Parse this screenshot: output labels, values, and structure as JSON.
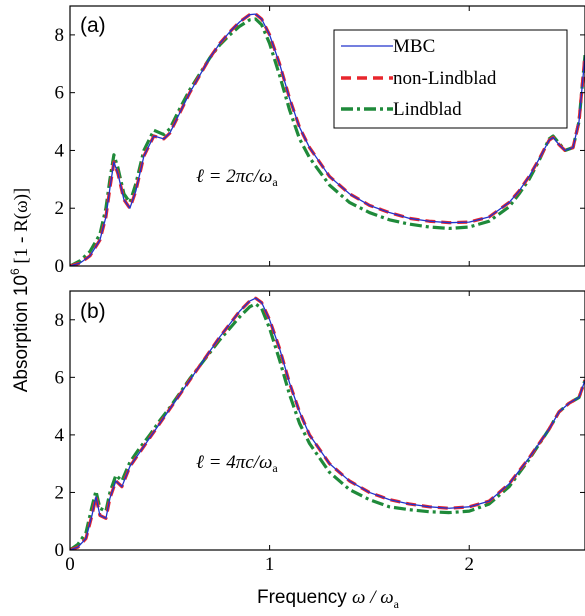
{
  "colors": {
    "mbc": "#2233cc",
    "non_lindblad": "#e8262d",
    "lindblad": "#1f8a3a",
    "axes": "#000000"
  },
  "axes_text": {
    "ylabel_main": "Absorption 10",
    "ylabel_sup": "6",
    "ylabel_rest": " [1 - R(ω)]",
    "xlabel_main": "Frequency ",
    "xlabel_omega": "ω / ω",
    "xlabel_sub": "a"
  },
  "legend": {
    "mbc": "MBC",
    "non_lindblad": "non-Lindblad",
    "lindblad": "Lindblad"
  },
  "chart_data": [
    {
      "type": "line",
      "panel": "(a)",
      "annotation": "ℓ = 2πc/ω",
      "annotation_sub": "a",
      "xlim": [
        0,
        2.58
      ],
      "ylim": [
        0,
        9
      ],
      "xticks": [
        "0",
        "1",
        "2"
      ],
      "yticks": [
        "0",
        "2",
        "4",
        "6",
        "8"
      ],
      "series": [
        {
          "name": "MBC",
          "key": "mbc",
          "x": [
            0,
            0.05,
            0.1,
            0.15,
            0.18,
            0.2,
            0.22,
            0.24,
            0.27,
            0.3,
            0.33,
            0.37,
            0.42,
            0.47,
            0.5,
            0.55,
            0.6,
            0.65,
            0.7,
            0.75,
            0.8,
            0.85,
            0.9,
            0.93,
            0.96,
            1.0,
            1.05,
            1.1,
            1.15,
            1.2,
            1.3,
            1.4,
            1.5,
            1.6,
            1.7,
            1.8,
            1.9,
            2.0,
            2.1,
            2.2,
            2.25,
            2.3,
            2.35,
            2.4,
            2.42,
            2.45,
            2.48,
            2.52,
            2.55,
            2.58
          ],
          "y": [
            0,
            0.1,
            0.35,
            0.9,
            1.7,
            2.7,
            3.6,
            3.2,
            2.3,
            2.0,
            2.6,
            3.8,
            4.5,
            4.4,
            4.6,
            5.3,
            6.0,
            6.6,
            7.2,
            7.7,
            8.1,
            8.45,
            8.7,
            8.72,
            8.55,
            8.0,
            7.0,
            5.8,
            4.8,
            4.1,
            3.1,
            2.5,
            2.1,
            1.85,
            1.65,
            1.55,
            1.5,
            1.52,
            1.7,
            2.2,
            2.6,
            3.1,
            3.7,
            4.35,
            4.45,
            4.2,
            4.0,
            4.1,
            5.0,
            7.3
          ]
        },
        {
          "name": "non-Lindblad",
          "key": "non_lindblad",
          "x": [
            0,
            0.05,
            0.1,
            0.15,
            0.18,
            0.2,
            0.22,
            0.24,
            0.27,
            0.3,
            0.33,
            0.37,
            0.42,
            0.47,
            0.5,
            0.55,
            0.6,
            0.65,
            0.7,
            0.75,
            0.8,
            0.85,
            0.9,
            0.93,
            0.96,
            1.0,
            1.05,
            1.1,
            1.15,
            1.2,
            1.3,
            1.4,
            1.5,
            1.6,
            1.7,
            1.8,
            1.9,
            2.0,
            2.1,
            2.2,
            2.25,
            2.3,
            2.35,
            2.4,
            2.42,
            2.45,
            2.48,
            2.52,
            2.55,
            2.58
          ],
          "y": [
            0,
            0.1,
            0.35,
            0.9,
            1.7,
            2.7,
            3.6,
            3.2,
            2.3,
            2.0,
            2.6,
            3.8,
            4.5,
            4.4,
            4.6,
            5.3,
            6.0,
            6.6,
            7.2,
            7.7,
            8.1,
            8.45,
            8.7,
            8.72,
            8.55,
            8.0,
            7.0,
            5.8,
            4.8,
            4.1,
            3.1,
            2.5,
            2.1,
            1.85,
            1.65,
            1.55,
            1.5,
            1.52,
            1.7,
            2.2,
            2.6,
            3.1,
            3.7,
            4.35,
            4.45,
            4.2,
            4.0,
            4.1,
            5.0,
            7.3
          ]
        },
        {
          "name": "Lindblad",
          "key": "lindblad",
          "x": [
            0,
            0.05,
            0.1,
            0.15,
            0.18,
            0.2,
            0.22,
            0.24,
            0.27,
            0.3,
            0.33,
            0.37,
            0.42,
            0.47,
            0.5,
            0.55,
            0.6,
            0.65,
            0.7,
            0.75,
            0.8,
            0.85,
            0.9,
            0.93,
            0.96,
            1.0,
            1.05,
            1.1,
            1.15,
            1.2,
            1.3,
            1.4,
            1.5,
            1.6,
            1.7,
            1.8,
            1.9,
            2.0,
            2.1,
            2.2,
            2.25,
            2.3,
            2.35,
            2.4,
            2.42,
            2.45,
            2.48,
            2.52,
            2.55,
            2.58
          ],
          "y": [
            0,
            0.18,
            0.5,
            1.1,
            2.0,
            3.0,
            3.85,
            3.4,
            2.5,
            2.2,
            2.85,
            4.0,
            4.7,
            4.55,
            4.75,
            5.45,
            6.1,
            6.65,
            7.2,
            7.65,
            8.0,
            8.3,
            8.52,
            8.55,
            8.35,
            7.7,
            6.6,
            5.4,
            4.4,
            3.75,
            2.8,
            2.2,
            1.85,
            1.6,
            1.45,
            1.35,
            1.3,
            1.35,
            1.55,
            2.05,
            2.5,
            3.0,
            3.65,
            4.4,
            4.5,
            4.25,
            4.0,
            4.1,
            5.0,
            7.3
          ]
        }
      ]
    },
    {
      "type": "line",
      "panel": "(b)",
      "annotation": "ℓ = 4πc/ω",
      "annotation_sub": "a",
      "xlim": [
        0,
        2.58
      ],
      "ylim": [
        0,
        9
      ],
      "xticks": [
        "0",
        "1",
        "2"
      ],
      "yticks": [
        "0",
        "2",
        "4",
        "6",
        "8"
      ],
      "series": [
        {
          "name": "MBC",
          "key": "mbc",
          "x": [
            0,
            0.04,
            0.08,
            0.11,
            0.13,
            0.15,
            0.18,
            0.2,
            0.23,
            0.26,
            0.3,
            0.35,
            0.4,
            0.45,
            0.5,
            0.55,
            0.6,
            0.65,
            0.7,
            0.75,
            0.8,
            0.85,
            0.9,
            0.93,
            0.96,
            1.0,
            1.05,
            1.1,
            1.15,
            1.2,
            1.3,
            1.4,
            1.5,
            1.6,
            1.7,
            1.8,
            1.9,
            2.0,
            2.1,
            2.2,
            2.3,
            2.4,
            2.45,
            2.5,
            2.55,
            2.58
          ],
          "y": [
            0,
            0.1,
            0.4,
            1.2,
            1.85,
            1.2,
            1.1,
            1.8,
            2.4,
            2.2,
            2.9,
            3.4,
            3.9,
            4.4,
            4.9,
            5.4,
            5.9,
            6.4,
            6.9,
            7.4,
            7.85,
            8.3,
            8.65,
            8.75,
            8.6,
            8.0,
            7.0,
            5.8,
            4.8,
            4.0,
            3.0,
            2.4,
            2.0,
            1.75,
            1.6,
            1.5,
            1.45,
            1.5,
            1.7,
            2.3,
            3.2,
            4.2,
            4.8,
            5.1,
            5.3,
            5.9
          ]
        },
        {
          "name": "non-Lindblad",
          "key": "non_lindblad",
          "x": [
            0,
            0.04,
            0.08,
            0.11,
            0.13,
            0.15,
            0.18,
            0.2,
            0.23,
            0.26,
            0.3,
            0.35,
            0.4,
            0.45,
            0.5,
            0.55,
            0.6,
            0.65,
            0.7,
            0.75,
            0.8,
            0.85,
            0.9,
            0.93,
            0.96,
            1.0,
            1.05,
            1.1,
            1.15,
            1.2,
            1.3,
            1.4,
            1.5,
            1.6,
            1.7,
            1.8,
            1.9,
            2.0,
            2.1,
            2.2,
            2.3,
            2.4,
            2.45,
            2.5,
            2.55,
            2.58
          ],
          "y": [
            0,
            0.1,
            0.4,
            1.2,
            1.85,
            1.2,
            1.1,
            1.8,
            2.4,
            2.2,
            2.9,
            3.4,
            3.9,
            4.4,
            4.9,
            5.4,
            5.9,
            6.4,
            6.9,
            7.4,
            7.85,
            8.3,
            8.65,
            8.75,
            8.6,
            8.0,
            7.0,
            5.8,
            4.8,
            4.0,
            3.0,
            2.4,
            2.0,
            1.75,
            1.6,
            1.5,
            1.45,
            1.5,
            1.7,
            2.3,
            3.2,
            4.2,
            4.8,
            5.1,
            5.3,
            5.9
          ]
        },
        {
          "name": "Lindblad",
          "key": "lindblad",
          "x": [
            0,
            0.04,
            0.08,
            0.11,
            0.13,
            0.15,
            0.18,
            0.2,
            0.23,
            0.26,
            0.3,
            0.35,
            0.4,
            0.45,
            0.5,
            0.55,
            0.6,
            0.65,
            0.7,
            0.75,
            0.8,
            0.85,
            0.9,
            0.93,
            0.96,
            1.0,
            1.05,
            1.1,
            1.15,
            1.2,
            1.3,
            1.4,
            1.5,
            1.6,
            1.7,
            1.8,
            1.9,
            2.0,
            2.1,
            2.2,
            2.3,
            2.4,
            2.45,
            2.5,
            2.55,
            2.58
          ],
          "y": [
            0,
            0.2,
            0.6,
            1.5,
            2.05,
            1.45,
            1.35,
            2.0,
            2.6,
            2.4,
            3.05,
            3.55,
            4.0,
            4.5,
            4.95,
            5.45,
            5.95,
            6.4,
            6.85,
            7.3,
            7.7,
            8.1,
            8.45,
            8.55,
            8.4,
            7.7,
            6.6,
            5.4,
            4.4,
            3.7,
            2.7,
            2.1,
            1.75,
            1.5,
            1.4,
            1.33,
            1.3,
            1.35,
            1.6,
            2.2,
            3.15,
            4.2,
            4.8,
            5.1,
            5.3,
            5.9
          ]
        }
      ]
    }
  ]
}
